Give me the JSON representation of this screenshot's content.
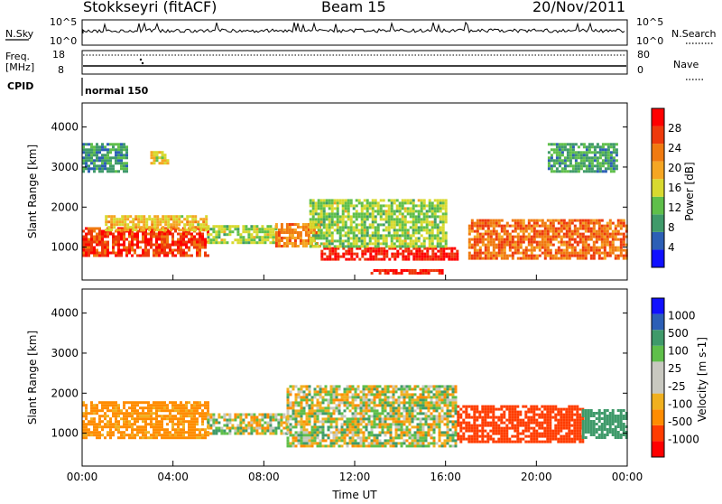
{
  "header": {
    "station": "Stokkseyri (fitACF)",
    "beam": "Beam 15",
    "date": "20/Nov/2011"
  },
  "top_panels": {
    "nsky_label": "N.Sky",
    "nsky_ticks": [
      "10^5",
      "10^0"
    ],
    "nsearch_label": "N.Search",
    "nsearch_ticks": [
      "10^5",
      "10^0"
    ],
    "freq_label": "Freq.",
    "freq_unit": "[MHz]",
    "freq_ticks": [
      "18",
      "8"
    ],
    "nave_label": "Nave",
    "nave_ticks": [
      "80",
      "0"
    ],
    "cpid_label": "CPID",
    "cpid_value": "normal 150"
  },
  "colors": {
    "power": [
      "#1010ff",
      "#2c5fb6",
      "#3f9a6a",
      "#5fbf4a",
      "#d8d92f",
      "#f5a623",
      "#f07a10",
      "#ee3a0c",
      "#ff0000"
    ],
    "velocity": [
      "#ff0000",
      "#ff3c00",
      "#ff8c00",
      "#f0b020",
      "#c8c8c0",
      "#c8c8c0",
      "#5fbf4a",
      "#3f9a6a",
      "#2c5fb6",
      "#1010ff"
    ],
    "ground_scatter": "#c8c8c0"
  },
  "chart_data": [
    {
      "type": "heatmap",
      "name": "power",
      "ylabel": "Slant Range [km]",
      "xlabel": "",
      "x_ticks": [
        "00:00",
        "04:00",
        "08:00",
        "12:00",
        "16:00",
        "20:00",
        "00:00"
      ],
      "y_ticks": [
        "1000",
        "2000",
        "3000",
        "4000"
      ],
      "xlim": [
        0,
        24
      ],
      "ylim": [
        180,
        4600
      ],
      "colorbar_label": "Power [dB]",
      "colorbar_ticks": [
        "4",
        "8",
        "12",
        "16",
        "20",
        "24",
        "28"
      ],
      "colorbar_range": [
        0,
        32
      ],
      "regions": [
        {
          "t": [
            0,
            5.5
          ],
          "r": [
            800,
            1500
          ],
          "value": 27
        },
        {
          "t": [
            1,
            5.5
          ],
          "r": [
            1400,
            1800
          ],
          "value": 18
        },
        {
          "t": [
            5.5,
            8.5
          ],
          "r": [
            1100,
            1550
          ],
          "value": 14
        },
        {
          "t": [
            8.5,
            10.5
          ],
          "r": [
            1000,
            1600
          ],
          "value": 22
        },
        {
          "t": [
            10.5,
            16.5
          ],
          "r": [
            700,
            1000
          ],
          "value": 29
        },
        {
          "t": [
            10,
            16
          ],
          "r": [
            1000,
            2200
          ],
          "value": 14
        },
        {
          "t": [
            12.7,
            15.8
          ],
          "r": [
            350,
            450
          ],
          "value": 30
        },
        {
          "t": [
            17,
            24
          ],
          "r": [
            700,
            1700
          ],
          "value": 24
        },
        {
          "t": [
            20.5,
            23.5
          ],
          "r": [
            2900,
            3600
          ],
          "value": 10
        },
        {
          "t": [
            0,
            2
          ],
          "r": [
            2900,
            3600
          ],
          "value": 9
        },
        {
          "t": [
            3,
            3.8
          ],
          "r": [
            3100,
            3400
          ],
          "value": 17
        }
      ]
    },
    {
      "type": "heatmap",
      "name": "velocity",
      "ylabel": "Slant Range [km]",
      "xlabel": "Time UT",
      "x_ticks": [
        "00:00",
        "04:00",
        "08:00",
        "12:00",
        "16:00",
        "20:00",
        "00:00"
      ],
      "y_ticks": [
        "1000",
        "2000",
        "3000",
        "4000"
      ],
      "xlim": [
        0,
        24
      ],
      "ylim": [
        180,
        4600
      ],
      "colorbar_label": "Velocity [m s-1]",
      "colorbar_ticks": [
        "1000",
        "500",
        "100",
        "25",
        "-25",
        "-100",
        "-500",
        "-1000"
      ],
      "regions": [
        {
          "t": [
            0,
            5.5
          ],
          "r": [
            900,
            1800
          ],
          "value": -200
        },
        {
          "t": [
            5.5,
            9
          ],
          "r": [
            1000,
            1500
          ],
          "value": 0
        },
        {
          "t": [
            9,
            16.5
          ],
          "r": [
            700,
            2200
          ],
          "value": 0
        },
        {
          "t": [
            16.5,
            22
          ],
          "r": [
            800,
            1700
          ],
          "value": -700
        },
        {
          "t": [
            22,
            24
          ],
          "r": [
            900,
            1600
          ],
          "value": 300
        }
      ]
    }
  ]
}
